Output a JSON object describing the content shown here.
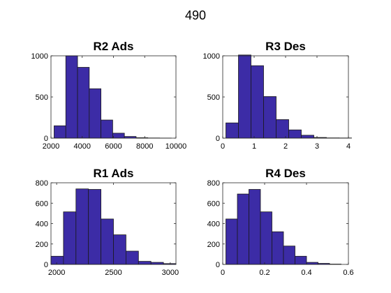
{
  "figure": {
    "suptitle": "490",
    "bar_color": "#3C2CA6",
    "bar_edge": "#1A1A1A"
  },
  "chart_data": [
    {
      "type": "bar",
      "title": "R2 Ads",
      "xlim": [
        2000,
        10000
      ],
      "ylim": [
        0,
        1000
      ],
      "xticks": [
        2000,
        4000,
        6000,
        8000,
        10000
      ],
      "xtick_labels": [
        "2000",
        "4000",
        "6000",
        "8000",
        "10000"
      ],
      "yticks": [
        0,
        500,
        1000
      ],
      "ytick_labels": [
        "0",
        "500",
        "1000"
      ],
      "bin_edges": [
        2200,
        2950,
        3700,
        4450,
        5200,
        5950,
        6700,
        7450,
        8200,
        8950,
        9700
      ],
      "values": [
        150,
        1000,
        860,
        600,
        220,
        60,
        20,
        5,
        2,
        1
      ],
      "grid": false
    },
    {
      "type": "bar",
      "title": "R3 Des",
      "xlim": [
        0,
        4
      ],
      "ylim": [
        0,
        1000
      ],
      "xticks": [
        0,
        1,
        2,
        3,
        4
      ],
      "xtick_labels": [
        "0",
        "1",
        "2",
        "3",
        "4"
      ],
      "yticks": [
        0,
        500,
        1000
      ],
      "ytick_labels": [
        "0",
        "500",
        "1000"
      ],
      "bin_edges": [
        0.1,
        0.5,
        0.9,
        1.3,
        1.7,
        2.1,
        2.5,
        2.9,
        3.3,
        3.7,
        4.1
      ],
      "values": [
        185,
        1010,
        880,
        505,
        225,
        100,
        35,
        8,
        3,
        2
      ],
      "grid": false
    },
    {
      "type": "bar",
      "title": "R1 Ads",
      "xlim": [
        1950,
        3050
      ],
      "ylim": [
        0,
        800
      ],
      "xticks": [
        2000,
        2500,
        3000
      ],
      "xtick_labels": [
        "2000",
        "2500",
        "3000"
      ],
      "yticks": [
        0,
        200,
        400,
        600,
        800
      ],
      "ytick_labels": [
        "0",
        "200",
        "400",
        "600",
        "800"
      ],
      "bin_edges": [
        1950,
        2060,
        2170,
        2280,
        2390,
        2500,
        2610,
        2720,
        2830,
        2940,
        3050
      ],
      "values": [
        80,
        515,
        740,
        735,
        445,
        290,
        130,
        30,
        20,
        8
      ],
      "grid": false
    },
    {
      "type": "bar",
      "title": "R4 Des",
      "xlim": [
        0,
        0.6
      ],
      "ylim": [
        0,
        800
      ],
      "xticks": [
        0,
        0.2,
        0.4,
        0.6
      ],
      "xtick_labels": [
        "0",
        "0.2",
        "0.4",
        "0.6"
      ],
      "yticks": [
        0,
        200,
        400,
        600,
        800
      ],
      "ytick_labels": [
        "0",
        "200",
        "400",
        "600",
        "800"
      ],
      "bin_edges": [
        0.015,
        0.07,
        0.125,
        0.18,
        0.235,
        0.29,
        0.345,
        0.4,
        0.455,
        0.51,
        0.565
      ],
      "values": [
        445,
        690,
        735,
        515,
        320,
        180,
        80,
        20,
        10,
        3
      ],
      "grid": false
    }
  ]
}
